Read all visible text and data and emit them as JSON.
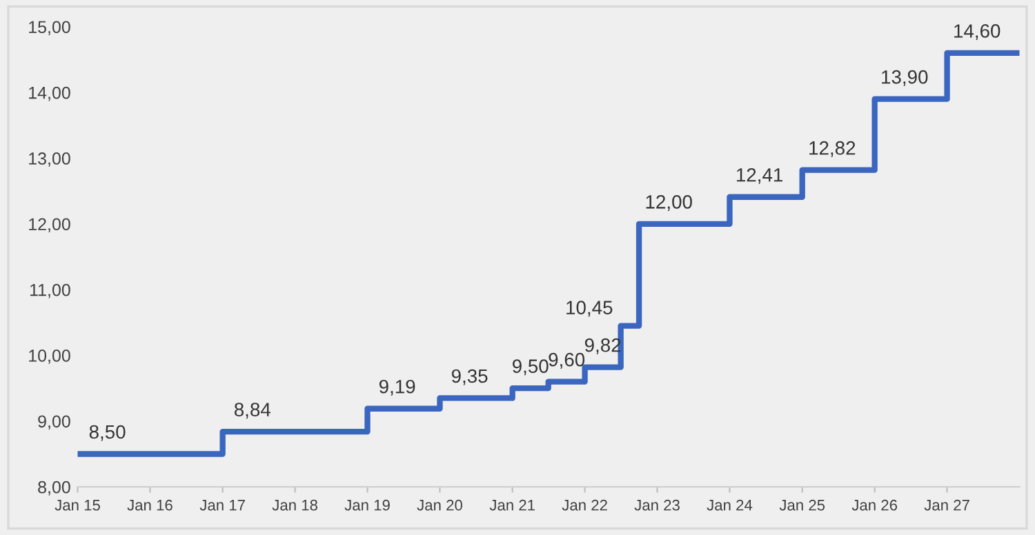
{
  "chart_data": {
    "type": "step",
    "x": [
      "2015-01-01",
      "2017-01-01",
      "2019-01-01",
      "2020-01-01",
      "2021-01-01",
      "2021-07-01",
      "2022-01-01",
      "2022-07-01",
      "2022-10-01",
      "2024-01-01",
      "2025-01-01",
      "2026-01-01",
      "2027-01-01",
      "2027-12-31"
    ],
    "series": [
      {
        "color": "#3a66c0",
        "values": [
          8.5,
          8.84,
          9.19,
          9.35,
          9.5,
          9.6,
          9.82,
          10.45,
          12.0,
          12.41,
          12.82,
          13.9,
          14.6,
          14.6
        ],
        "value_labels": [
          "8,50",
          "8,84",
          "9,19",
          "9,35",
          "9,50",
          "9,60",
          "9,82",
          "10,45",
          "12,00",
          "12,41",
          "12,82",
          "13,90",
          "14,60",
          null
        ]
      }
    ],
    "xlim": [
      "2015-01-01",
      "2028-01-01"
    ],
    "xticks": [
      {
        "value": "2015-01-01",
        "label": "Jan 15"
      },
      {
        "value": "2016-01-01",
        "label": "Jan 16"
      },
      {
        "value": "2017-01-01",
        "label": "Jan 17"
      },
      {
        "value": "2018-01-01",
        "label": "Jan 18"
      },
      {
        "value": "2019-01-01",
        "label": "Jan 19"
      },
      {
        "value": "2020-01-01",
        "label": "Jan 20"
      },
      {
        "value": "2021-01-01",
        "label": "Jan 21"
      },
      {
        "value": "2022-01-01",
        "label": "Jan 22"
      },
      {
        "value": "2023-01-01",
        "label": "Jan 23"
      },
      {
        "value": "2024-01-01",
        "label": "Jan 24"
      },
      {
        "value": "2025-01-01",
        "label": "Jan 25"
      },
      {
        "value": "2026-01-01",
        "label": "Jan 26"
      },
      {
        "value": "2027-01-01",
        "label": "Jan 27"
      }
    ],
    "ylim": [
      8,
      15
    ],
    "yticks": [
      {
        "value": 8,
        "label": "8,00"
      },
      {
        "value": 9,
        "label": "9,00"
      },
      {
        "value": 10,
        "label": "10,00"
      },
      {
        "value": 11,
        "label": "11,00"
      },
      {
        "value": 12,
        "label": "12,00"
      },
      {
        "value": 13,
        "label": "13,00"
      },
      {
        "value": 14,
        "label": "14,00"
      },
      {
        "value": 15,
        "label": "15,00"
      }
    ],
    "grid": false,
    "marker": "none",
    "line_style": "solid"
  }
}
